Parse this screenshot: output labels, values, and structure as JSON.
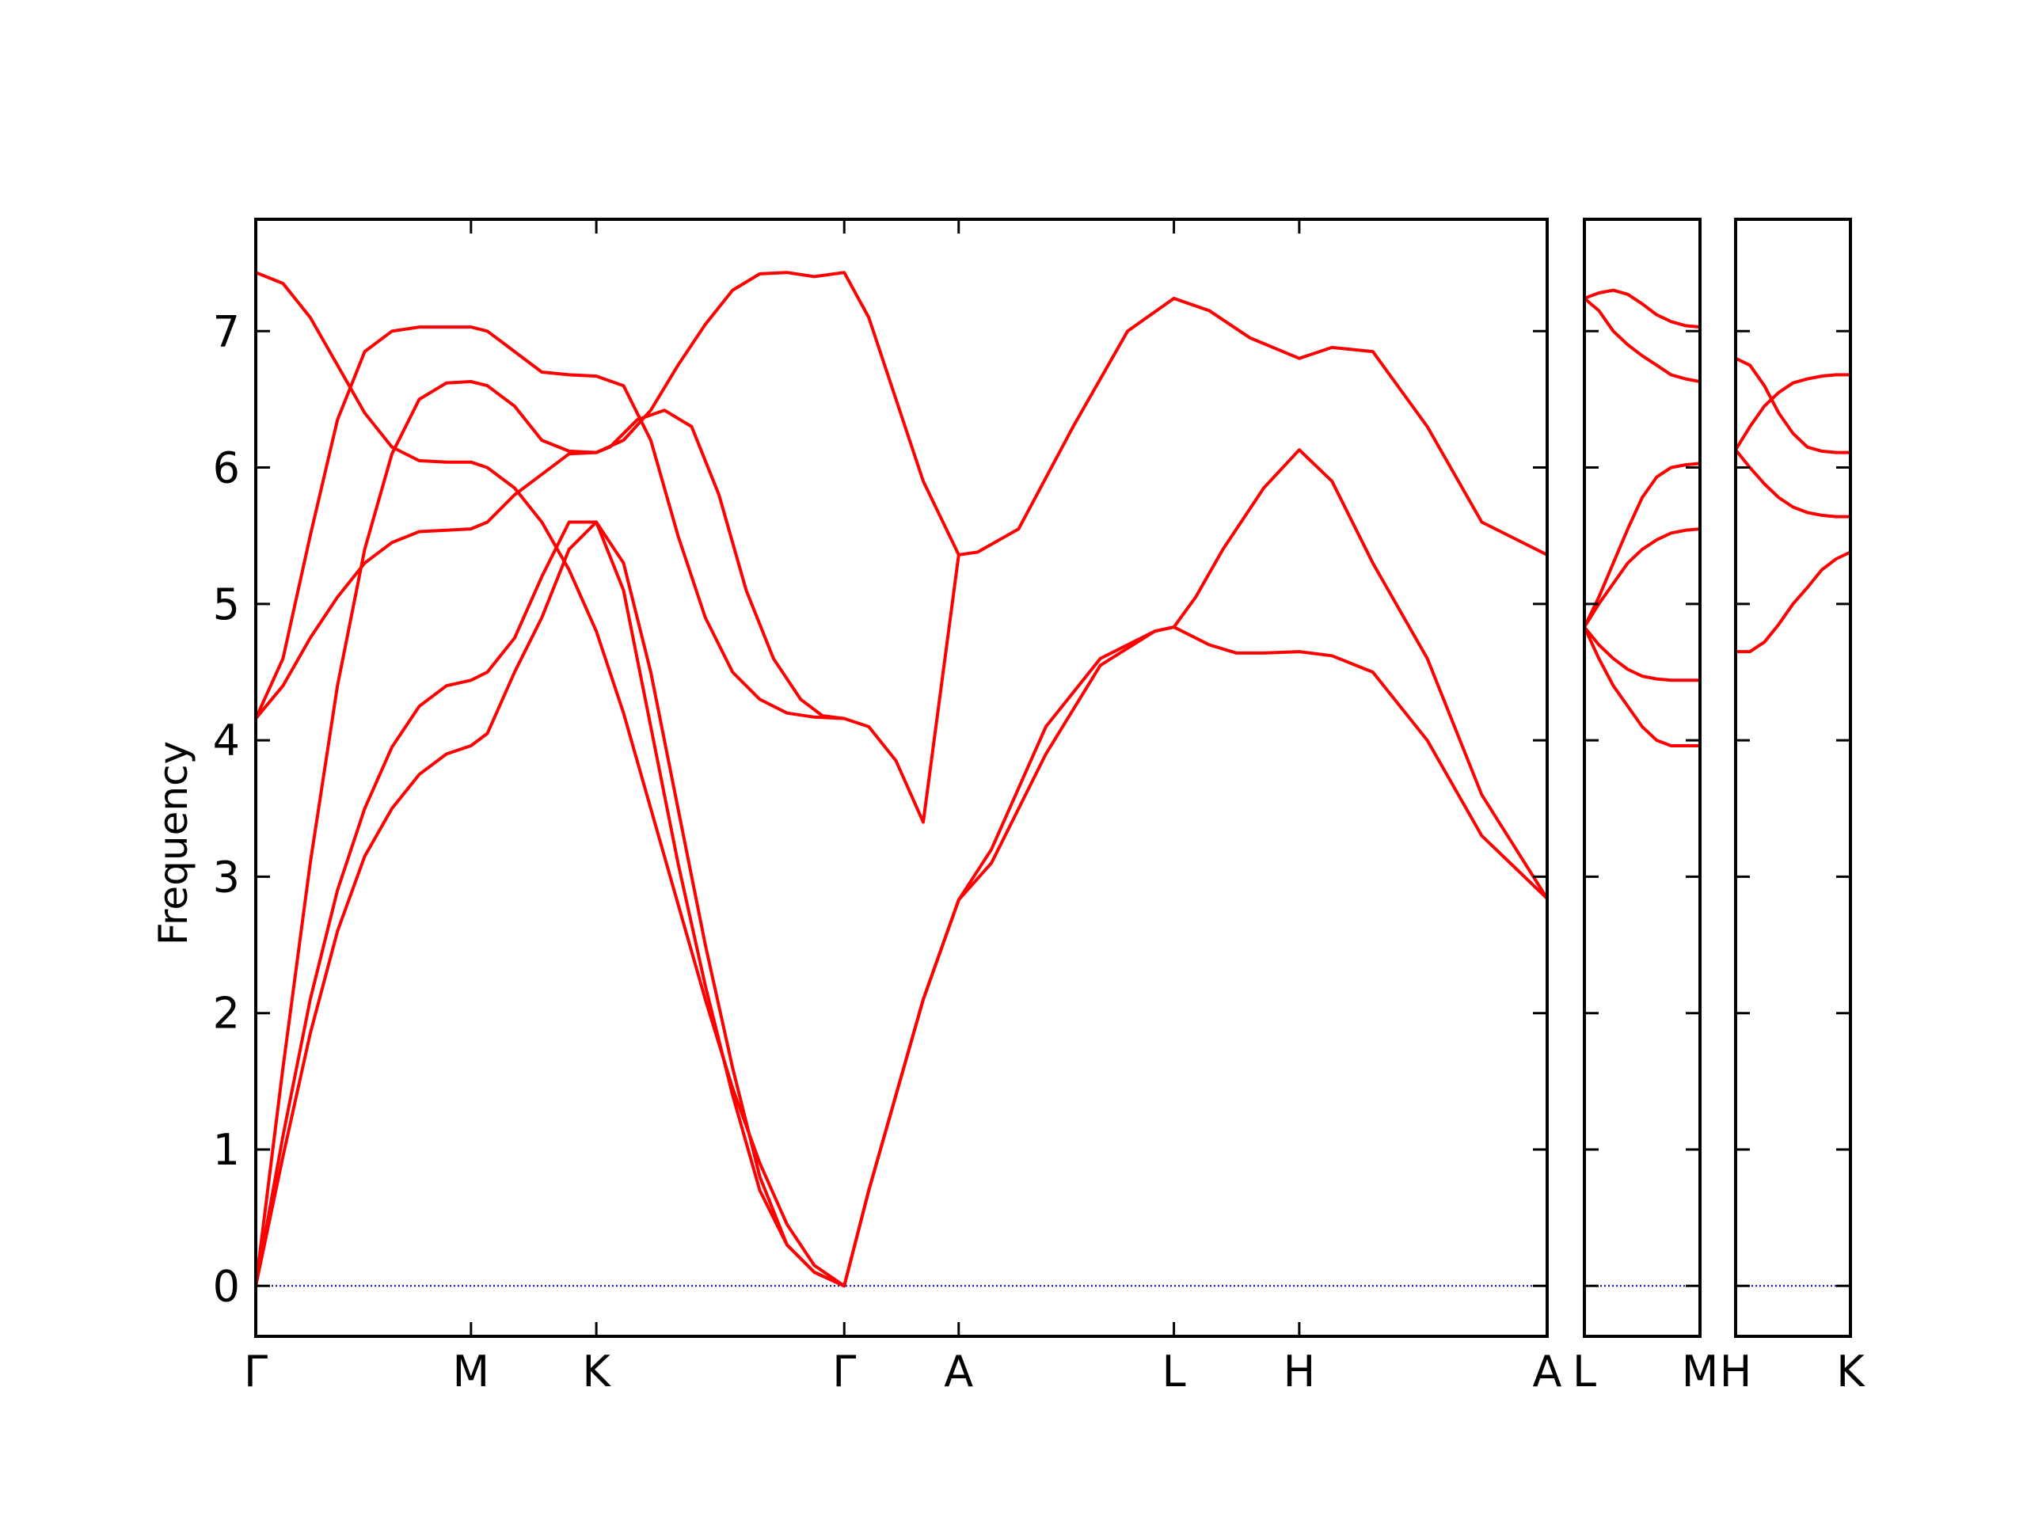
{
  "chart_data": {
    "type": "line",
    "title": "",
    "ylabel": "Frequency",
    "ylim": [
      -0.37,
      7.82
    ],
    "yticks": [
      0,
      1,
      2,
      3,
      4,
      5,
      6,
      7
    ],
    "grid": false,
    "legend": "none",
    "line_color": "#ff0000",
    "zero_line_color": "#0000cc",
    "panels": [
      {
        "segments": [
          {
            "from": "Γ",
            "to": "M",
            "x": [
              0,
              0.79
            ]
          },
          {
            "from": "M",
            "to": "K",
            "x": [
              0.79,
              1.25
            ]
          },
          {
            "from": "K",
            "to": "Γ",
            "x": [
              1.25,
              2.16
            ]
          },
          {
            "from": "Γ",
            "to": "A",
            "x": [
              2.16,
              2.58
            ]
          },
          {
            "from": "A",
            "to": "L",
            "x": [
              2.58,
              3.37
            ]
          },
          {
            "from": "L",
            "to": "H",
            "x": [
              3.37,
              3.83
            ]
          },
          {
            "from": "H",
            "to": "A",
            "x": [
              3.83,
              4.74
            ]
          }
        ],
        "xlim": [
          0,
          4.74
        ],
        "xtick_positions": [
          0,
          0.79,
          1.25,
          2.16,
          2.58,
          3.37,
          3.83,
          4.74
        ],
        "xtick_labels": [
          "Γ",
          "M",
          "K",
          "Γ",
          "A",
          "L",
          "H",
          "A"
        ],
        "bands": [
          {
            "x": [
              0,
              0.1,
              0.2,
              0.3,
              0.4,
              0.5,
              0.6,
              0.7,
              0.79,
              0.85,
              0.95,
              1.05,
              1.15,
              1.25,
              1.35,
              1.45,
              1.55,
              1.65,
              1.75,
              1.85,
              1.95,
              2.05,
              2.16,
              2.25,
              2.35,
              2.45,
              2.58,
              2.7,
              2.9,
              3.1,
              3.3,
              3.37,
              3.5,
              3.6,
              3.7,
              3.83,
              3.95,
              4.1,
              4.3,
              4.5,
              4.74
            ],
            "y": [
              0,
              0.95,
              1.85,
              2.6,
              3.15,
              3.5,
              3.75,
              3.9,
              3.96,
              4.05,
              4.5,
              4.9,
              5.4,
              5.6,
              5.3,
              4.5,
              3.5,
              2.5,
              1.6,
              0.8,
              0.3,
              0.1,
              0,
              0.7,
              1.4,
              2.1,
              2.83,
              3.1,
              3.9,
              4.55,
              4.8,
              4.83,
              4.7,
              4.64,
              4.64,
              4.65,
              4.62,
              4.5,
              4.0,
              3.3,
              2.84
            ]
          },
          {
            "x": [
              0,
              0.1,
              0.2,
              0.3,
              0.4,
              0.5,
              0.6,
              0.7,
              0.79,
              0.85,
              0.95,
              1.05,
              1.15,
              1.25,
              1.35,
              1.45,
              1.55,
              1.65,
              1.75,
              1.85,
              1.95,
              2.05,
              2.16,
              2.25,
              2.35,
              2.45,
              2.58,
              2.7,
              2.9,
              3.1,
              3.3,
              3.37,
              3.45,
              3.55,
              3.7,
              3.83,
              3.95,
              4.1,
              4.3,
              4.5,
              4.74
            ],
            "y": [
              0,
              1.1,
              2.1,
              2.9,
              3.5,
              3.95,
              4.25,
              4.4,
              4.44,
              4.5,
              4.75,
              5.2,
              5.6,
              5.6,
              5.1,
              4.1,
              3.1,
              2.2,
              1.4,
              0.7,
              0.3,
              0.1,
              0,
              0.7,
              1.4,
              2.1,
              2.83,
              3.2,
              4.1,
              4.6,
              4.8,
              4.83,
              5.05,
              5.4,
              5.85,
              6.13,
              5.9,
              5.3,
              4.6,
              3.6,
              2.84
            ]
          },
          {
            "x": [
              0,
              0.1,
              0.2,
              0.3,
              0.4,
              0.5,
              0.6,
              0.7,
              0.79,
              0.85,
              0.95,
              1.05,
              1.15,
              1.25,
              1.3,
              1.4,
              1.5,
              1.6,
              1.7,
              1.8,
              1.9,
              2.0,
              2.08,
              2.16,
              2.25,
              2.35,
              2.45,
              2.58,
              2.65,
              2.8,
              3.0,
              3.2,
              3.37,
              3.5,
              3.65,
              3.83,
              3.95,
              4.1,
              4.3,
              4.5,
              4.74
            ],
            "y": [
              0,
              1.6,
              3.1,
              4.4,
              5.4,
              6.1,
              6.5,
              6.62,
              6.63,
              6.6,
              6.45,
              6.2,
              6.12,
              6.11,
              6.15,
              6.35,
              6.42,
              6.3,
              5.8,
              5.1,
              4.6,
              4.3,
              4.18,
              4.16,
              4.1,
              3.85,
              3.4,
              5.36,
              5.38,
              5.55,
              6.3,
              7.0,
              7.24,
              7.15,
              6.95,
              6.8,
              6.88,
              6.85,
              6.3,
              5.6,
              5.36
            ]
          },
          {
            "x": [
              0,
              0.1,
              0.2,
              0.3,
              0.4,
              0.5,
              0.6,
              0.7,
              0.79,
              0.85,
              0.95,
              1.05,
              1.15,
              1.25,
              1.35,
              1.45,
              1.55,
              1.65,
              1.75,
              1.85,
              1.95,
              2.05,
              2.16,
              2.25,
              2.35,
              2.45,
              2.58
            ],
            "y": [
              4.16,
              4.4,
              4.75,
              5.05,
              5.3,
              5.45,
              5.53,
              5.54,
              5.55,
              5.6,
              5.8,
              5.95,
              6.1,
              6.11,
              6.2,
              6.42,
              6.75,
              7.05,
              7.3,
              7.42,
              7.43,
              7.4,
              7.43,
              7.1,
              6.5,
              5.9,
              5.36
            ]
          },
          {
            "x": [
              0,
              0.1,
              0.2,
              0.3,
              0.4,
              0.5,
              0.6,
              0.7,
              0.79,
              0.85,
              0.95,
              1.05,
              1.15,
              1.25,
              1.35,
              1.45,
              1.55,
              1.65,
              1.75,
              1.85,
              1.95,
              2.05,
              2.16
            ],
            "y": [
              4.16,
              4.6,
              5.5,
              6.35,
              6.85,
              7.0,
              7.03,
              7.03,
              7.03,
              7.0,
              6.85,
              6.7,
              6.68,
              6.67,
              6.6,
              6.2,
              5.5,
              4.9,
              4.5,
              4.3,
              4.2,
              4.17,
              4.16
            ]
          },
          {
            "x": [
              0,
              0.1,
              0.2,
              0.3,
              0.4,
              0.5,
              0.6,
              0.7,
              0.79,
              0.85,
              0.95,
              1.05,
              1.15,
              1.25,
              1.35,
              1.45,
              1.55,
              1.65,
              1.75,
              1.85,
              1.95,
              2.05,
              2.16
            ],
            "y": [
              7.43,
              7.35,
              7.1,
              6.75,
              6.4,
              6.15,
              6.05,
              6.04,
              6.04,
              6.0,
              5.85,
              5.6,
              5.25,
              4.8,
              4.2,
              3.5,
              2.8,
              2.1,
              1.45,
              0.9,
              0.45,
              0.15,
              0
            ]
          }
        ]
      },
      {
        "segments": [
          {
            "from": "L",
            "to": "M",
            "x": [
              0,
              0.4
            ]
          }
        ],
        "xlim": [
          0,
          0.4
        ],
        "xtick_positions": [
          0,
          0.4
        ],
        "xtick_labels": [
          "L",
          "M"
        ],
        "bands": [
          {
            "x": [
              0,
              0.05,
              0.1,
              0.15,
              0.2,
              0.25,
              0.3,
              0.35,
              0.4
            ],
            "y": [
              4.83,
              4.6,
              4.4,
              4.25,
              4.1,
              4.0,
              3.96,
              3.96,
              3.96
            ]
          },
          {
            "x": [
              0,
              0.05,
              0.1,
              0.15,
              0.2,
              0.25,
              0.3,
              0.35,
              0.4
            ],
            "y": [
              4.83,
              4.7,
              4.6,
              4.52,
              4.47,
              4.45,
              4.44,
              4.44,
              4.44
            ]
          },
          {
            "x": [
              0,
              0.05,
              0.1,
              0.15,
              0.2,
              0.25,
              0.3,
              0.35,
              0.4
            ],
            "y": [
              4.83,
              5.0,
              5.15,
              5.3,
              5.4,
              5.47,
              5.52,
              5.54,
              5.55
            ]
          },
          {
            "x": [
              0,
              0.05,
              0.1,
              0.15,
              0.2,
              0.25,
              0.3,
              0.35,
              0.4
            ],
            "y": [
              4.83,
              5.05,
              5.3,
              5.55,
              5.78,
              5.93,
              6.0,
              6.02,
              6.03
            ]
          },
          {
            "x": [
              0,
              0.05,
              0.1,
              0.15,
              0.2,
              0.25,
              0.3,
              0.35,
              0.4
            ],
            "y": [
              7.24,
              7.15,
              7.0,
              6.9,
              6.82,
              6.75,
              6.68,
              6.65,
              6.63
            ]
          },
          {
            "x": [
              0,
              0.05,
              0.1,
              0.15,
              0.2,
              0.25,
              0.3,
              0.35,
              0.4
            ],
            "y": [
              7.24,
              7.28,
              7.3,
              7.27,
              7.2,
              7.12,
              7.07,
              7.04,
              7.03
            ]
          }
        ]
      },
      {
        "segments": [
          {
            "from": "H",
            "to": "K",
            "x": [
              0,
              0.4
            ]
          }
        ],
        "xlim": [
          0,
          0.4
        ],
        "xtick_positions": [
          0,
          0.4
        ],
        "xtick_labels": [
          "H",
          "K"
        ],
        "bands": [
          {
            "x": [
              0,
              0.05,
              0.1,
              0.15,
              0.2,
              0.25,
              0.3,
              0.35,
              0.4
            ],
            "y": [
              4.65,
              4.65,
              4.72,
              4.85,
              5.0,
              5.12,
              5.25,
              5.33,
              5.38
            ]
          },
          {
            "x": [
              0,
              0.05,
              0.1,
              0.15,
              0.2,
              0.25,
              0.3,
              0.35,
              0.4
            ],
            "y": [
              6.13,
              6.0,
              5.88,
              5.78,
              5.71,
              5.67,
              5.65,
              5.64,
              5.64
            ]
          },
          {
            "x": [
              0,
              0.05,
              0.1,
              0.15,
              0.2,
              0.25,
              0.3,
              0.35,
              0.4
            ],
            "y": [
              6.13,
              6.3,
              6.45,
              6.55,
              6.62,
              6.65,
              6.67,
              6.68,
              6.68
            ]
          },
          {
            "x": [
              0,
              0.05,
              0.1,
              0.15,
              0.2,
              0.25,
              0.3,
              0.35,
              0.4
            ],
            "y": [
              6.8,
              6.75,
              6.6,
              6.4,
              6.25,
              6.15,
              6.12,
              6.11,
              6.11
            ]
          }
        ]
      }
    ]
  }
}
